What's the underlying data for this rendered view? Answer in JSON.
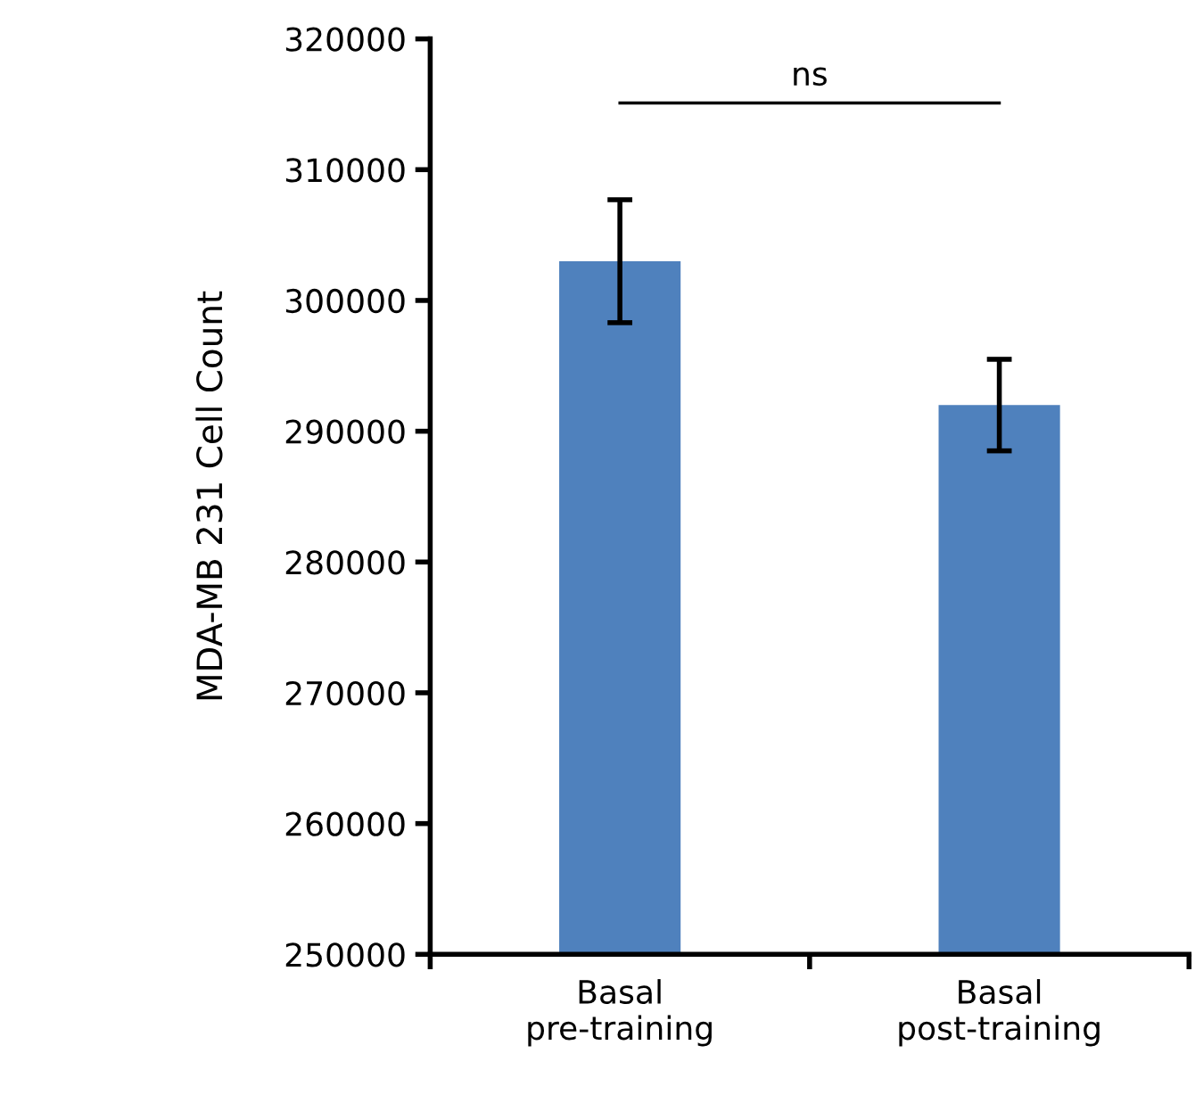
{
  "chart_data": {
    "type": "bar",
    "ylabel": "MDA-MB 231 Cell Count",
    "categories": [
      "Basal\npre-training",
      "Basal\npost-training"
    ],
    "values": [
      303000,
      292000
    ],
    "errors": [
      4700,
      3500
    ],
    "color": "#4f81bd",
    "ylim": [
      250000,
      320000
    ],
    "yticks": [
      250000,
      260000,
      270000,
      280000,
      290000,
      300000,
      310000,
      320000
    ],
    "grid": false,
    "legend": false,
    "annotations": [
      "ns"
    ]
  }
}
